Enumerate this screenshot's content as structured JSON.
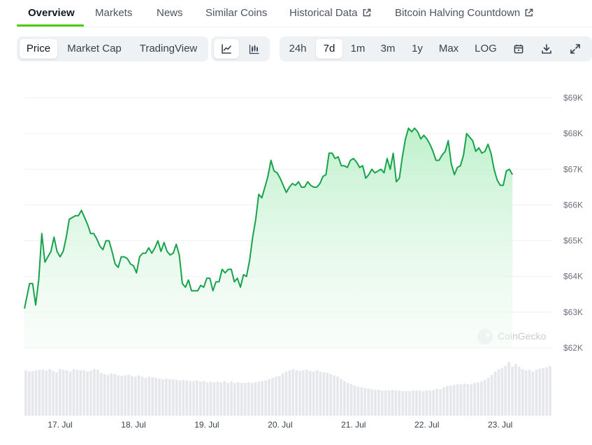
{
  "tabs": [
    {
      "label": "Overview",
      "active": true
    },
    {
      "label": "Markets"
    },
    {
      "label": "News"
    },
    {
      "label": "Similar Coins"
    },
    {
      "label": "Historical Data",
      "external": true
    },
    {
      "label": "Bitcoin Halving Countdown",
      "external": true
    }
  ],
  "toolbar": {
    "chart_kind": [
      "Price",
      "Market Cap",
      "TradingView"
    ],
    "chart_kind_selected": "Price",
    "chart_style_icons": [
      "line-chart-icon",
      "candlestick-icon"
    ],
    "chart_style_selected": "line-chart-icon",
    "ranges": [
      "24h",
      "7d",
      "1m",
      "3m",
      "1y",
      "Max",
      "LOG"
    ],
    "range_selected": "7d",
    "action_icons": [
      "calendar-icon",
      "download-icon",
      "expand-icon"
    ]
  },
  "watermark": "CoinGecko",
  "colors": {
    "line": "#16a34a",
    "fill_top": "#bbf0c9",
    "volume": "#e5e7eb",
    "accent": "#4bcc00"
  },
  "chart_data": {
    "type": "area",
    "x_ticks": [
      "17. Jul",
      "18. Jul",
      "19. Jul",
      "20. Jul",
      "21. Jul",
      "22. Jul",
      "23. Jul"
    ],
    "y_ticks": [
      "$69K",
      "$68K",
      "$67K",
      "$66K",
      "$65K",
      "$64K",
      "$63K",
      "$62K"
    ],
    "ylim": [
      62000,
      69000
    ],
    "x_range": [
      "16. Jul 12:20",
      "23. Jul 17:00"
    ],
    "series": [
      {
        "points": [
          [
            "16. Jul 12:20",
            63100
          ],
          [
            "16. Jul 14:00",
            63800
          ],
          [
            "16. Jul 15:00",
            63800
          ],
          [
            "16. Jul 16:00",
            63200
          ],
          [
            "16. Jul 17:00",
            63900
          ],
          [
            "16. Jul 18:00",
            65200
          ],
          [
            "16. Jul 19:00",
            64400
          ],
          [
            "16. Jul 20:00",
            64550
          ],
          [
            "16. Jul 21:00",
            64700
          ],
          [
            "16. Jul 22:00",
            65100
          ],
          [
            "16. Jul 23:00",
            64700
          ],
          [
            "17. Jul 00:00",
            64550
          ],
          [
            "17. Jul 01:00",
            64700
          ],
          [
            "17. Jul 02:00",
            65100
          ],
          [
            "17. Jul 03:00",
            65600
          ],
          [
            "17. Jul 05:00",
            65700
          ],
          [
            "17. Jul 06:00",
            65700
          ],
          [
            "17. Jul 07:00",
            65850
          ],
          [
            "17. Jul 08:00",
            65650
          ],
          [
            "17. Jul 09:00",
            65450
          ],
          [
            "17. Jul 10:00",
            65200
          ],
          [
            "17. Jul 11:00",
            65200
          ],
          [
            "17. Jul 12:00",
            65050
          ],
          [
            "17. Jul 13:00",
            64850
          ],
          [
            "17. Jul 14:00",
            64750
          ],
          [
            "17. Jul 15:00",
            65000
          ],
          [
            "17. Jul 16:00",
            65000
          ],
          [
            "17. Jul 17:00",
            64700
          ],
          [
            "17. Jul 18:00",
            64350
          ],
          [
            "17. Jul 19:00",
            64250
          ],
          [
            "17. Jul 20:00",
            64550
          ],
          [
            "17. Jul 21:00",
            64550
          ],
          [
            "17. Jul 22:00",
            64500
          ],
          [
            "17. Jul 23:00",
            64350
          ],
          [
            "18. Jul 00:00",
            64300
          ],
          [
            "18. Jul 01:00",
            64100
          ],
          [
            "18. Jul 02:00",
            64550
          ],
          [
            "18. Jul 03:00",
            64650
          ],
          [
            "18. Jul 04:00",
            64650
          ],
          [
            "18. Jul 05:00",
            64800
          ],
          [
            "18. Jul 06:00",
            64650
          ],
          [
            "18. Jul 07:00",
            64800
          ],
          [
            "18. Jul 08:00",
            65000
          ],
          [
            "18. Jul 09:00",
            64700
          ],
          [
            "18. Jul 10:00",
            64950
          ],
          [
            "18. Jul 11:00",
            64700
          ],
          [
            "18. Jul 12:00",
            64600
          ],
          [
            "18. Jul 13:00",
            64650
          ],
          [
            "18. Jul 14:00",
            64900
          ],
          [
            "18. Jul 15:00",
            64600
          ],
          [
            "18. Jul 16:00",
            63800
          ],
          [
            "18. Jul 17:00",
            63700
          ],
          [
            "18. Jul 18:00",
            63900
          ],
          [
            "18. Jul 19:00",
            63600
          ],
          [
            "18. Jul 20:00",
            63600
          ],
          [
            "18. Jul 21:00",
            63600
          ],
          [
            "18. Jul 22:00",
            63750
          ],
          [
            "18. Jul 23:00",
            63700
          ],
          [
            "19. Jul 00:00",
            63950
          ],
          [
            "19. Jul 01:00",
            63950
          ],
          [
            "19. Jul 02:00",
            63600
          ],
          [
            "19. Jul 03:00",
            63850
          ],
          [
            "19. Jul 04:00",
            63850
          ],
          [
            "19. Jul 05:00",
            64200
          ],
          [
            "19. Jul 06:00",
            64100
          ],
          [
            "19. Jul 07:00",
            64200
          ],
          [
            "19. Jul 08:00",
            64200
          ],
          [
            "19. Jul 09:00",
            63850
          ],
          [
            "19. Jul 10:00",
            63950
          ],
          [
            "19. Jul 11:00",
            63700
          ],
          [
            "19. Jul 12:00",
            64050
          ],
          [
            "19. Jul 13:00",
            64000
          ],
          [
            "19. Jul 14:00",
            64450
          ],
          [
            "19. Jul 15:00",
            65100
          ],
          [
            "19. Jul 16:00",
            65600
          ],
          [
            "19. Jul 17:00",
            66300
          ],
          [
            "19. Jul 18:00",
            66200
          ],
          [
            "19. Jul 19:00",
            66500
          ],
          [
            "19. Jul 20:00",
            66800
          ],
          [
            "19. Jul 21:00",
            67250
          ],
          [
            "19. Jul 22:00",
            66950
          ],
          [
            "19. Jul 23:00",
            66900
          ],
          [
            "20. Jul 00:00",
            66750
          ],
          [
            "20. Jul 01:00",
            66550
          ],
          [
            "20. Jul 02:00",
            66350
          ],
          [
            "20. Jul 03:00",
            66500
          ],
          [
            "20. Jul 04:00",
            66600
          ],
          [
            "20. Jul 05:00",
            66550
          ],
          [
            "20. Jul 06:00",
            66650
          ],
          [
            "20. Jul 07:00",
            66500
          ],
          [
            "20. Jul 08:00",
            66500
          ],
          [
            "20. Jul 09:00",
            66650
          ],
          [
            "20. Jul 10:00",
            66550
          ],
          [
            "20. Jul 11:00",
            66500
          ],
          [
            "20. Jul 12:00",
            66500
          ],
          [
            "20. Jul 13:00",
            66600
          ],
          [
            "20. Jul 14:00",
            66800
          ],
          [
            "20. Jul 15:00",
            66850
          ],
          [
            "20. Jul 16:00",
            67450
          ],
          [
            "20. Jul 17:00",
            67450
          ],
          [
            "20. Jul 18:00",
            67300
          ],
          [
            "20. Jul 19:00",
            67350
          ],
          [
            "20. Jul 20:00",
            67100
          ],
          [
            "20. Jul 21:00",
            67100
          ],
          [
            "20. Jul 22:00",
            67050
          ],
          [
            "20. Jul 23:00",
            67250
          ],
          [
            "21. Jul 00:00",
            67300
          ],
          [
            "21. Jul 01:00",
            67200
          ],
          [
            "21. Jul 02:00",
            67050
          ],
          [
            "21. Jul 03:00",
            67100
          ],
          [
            "21. Jul 04:00",
            66750
          ],
          [
            "21. Jul 05:00",
            66850
          ],
          [
            "21. Jul 06:00",
            67000
          ],
          [
            "21. Jul 07:00",
            66900
          ],
          [
            "21. Jul 08:00",
            66950
          ],
          [
            "21. Jul 09:00",
            67000
          ],
          [
            "21. Jul 10:00",
            66900
          ],
          [
            "21. Jul 11:00",
            67300
          ],
          [
            "21. Jul 12:00",
            67000
          ],
          [
            "21. Jul 13:00",
            67450
          ],
          [
            "21. Jul 14:00",
            66650
          ],
          [
            "21. Jul 15:00",
            66750
          ],
          [
            "21. Jul 16:00",
            67350
          ],
          [
            "21. Jul 17:00",
            67850
          ],
          [
            "21. Jul 18:00",
            68150
          ],
          [
            "21. Jul 19:00",
            68050
          ],
          [
            "21. Jul 20:00",
            68150
          ],
          [
            "21. Jul 21:00",
            68050
          ],
          [
            "21. Jul 22:00",
            67850
          ],
          [
            "21. Jul 23:00",
            67950
          ],
          [
            "22. Jul 00:00",
            67850
          ],
          [
            "22. Jul 01:00",
            67700
          ],
          [
            "22. Jul 02:00",
            67500
          ],
          [
            "22. Jul 03:00",
            67250
          ],
          [
            "22. Jul 04:00",
            67250
          ],
          [
            "22. Jul 05:00",
            67400
          ],
          [
            "22. Jul 06:00",
            67500
          ],
          [
            "22. Jul 07:00",
            67800
          ],
          [
            "22. Jul 08:00",
            67150
          ],
          [
            "22. Jul 09:00",
            66850
          ],
          [
            "22. Jul 10:00",
            67050
          ],
          [
            "22. Jul 11:00",
            67100
          ],
          [
            "22. Jul 12:00",
            67400
          ],
          [
            "22. Jul 13:00",
            68000
          ],
          [
            "22. Jul 14:00",
            67900
          ],
          [
            "22. Jul 15:00",
            67800
          ],
          [
            "22. Jul 16:00",
            67500
          ],
          [
            "22. Jul 17:00",
            67600
          ],
          [
            "22. Jul 18:00",
            67450
          ],
          [
            "22. Jul 19:00",
            67500
          ],
          [
            "22. Jul 20:00",
            67700
          ],
          [
            "22. Jul 21:00",
            67450
          ],
          [
            "22. Jul 22:00",
            67000
          ],
          [
            "22. Jul 23:00",
            66700
          ],
          [
            "23. Jul 00:00",
            66550
          ],
          [
            "23. Jul 01:00",
            66550
          ],
          [
            "23. Jul 02:00",
            66950
          ],
          [
            "23. Jul 03:00",
            67000
          ],
          [
            "23. Jul 04:00",
            66850
          ]
        ]
      }
    ],
    "volume_relative": [
      0.72,
      0.7,
      0.71,
      0.72,
      0.73,
      0.73,
      0.72,
      0.74,
      0.71,
      0.69,
      0.74,
      0.73,
      0.72,
      0.7,
      0.74,
      0.73,
      0.72,
      0.72,
      0.7,
      0.71,
      0.74,
      0.73,
      0.68,
      0.66,
      0.65,
      0.67,
      0.66,
      0.64,
      0.63,
      0.64,
      0.65,
      0.63,
      0.62,
      0.64,
      0.62,
      0.6,
      0.62,
      0.61,
      0.6,
      0.59,
      0.58,
      0.59,
      0.58,
      0.58,
      0.57,
      0.56,
      0.57,
      0.56,
      0.55,
      0.55,
      0.56,
      0.54,
      0.55,
      0.53,
      0.54,
      0.53,
      0.54,
      0.53,
      0.55,
      0.52,
      0.54,
      0.52,
      0.53,
      0.52,
      0.52,
      0.53,
      0.52,
      0.53,
      0.54,
      0.55,
      0.56,
      0.58,
      0.6,
      0.62,
      0.63,
      0.67,
      0.7,
      0.72,
      0.74,
      0.72,
      0.71,
      0.72,
      0.73,
      0.71,
      0.7,
      0.72,
      0.7,
      0.69,
      0.68,
      0.66,
      0.64,
      0.62,
      0.58,
      0.55,
      0.52,
      0.5,
      0.48,
      0.46,
      0.45,
      0.44,
      0.43,
      0.42,
      0.41,
      0.41,
      0.4,
      0.4,
      0.4,
      0.41,
      0.4,
      0.4,
      0.39,
      0.39,
      0.39,
      0.4,
      0.4,
      0.4,
      0.39,
      0.4,
      0.4,
      0.41,
      0.43,
      0.42,
      0.45,
      0.47,
      0.48,
      0.49,
      0.5,
      0.5,
      0.51,
      0.5,
      0.5,
      0.52,
      0.53,
      0.54,
      0.57,
      0.6,
      0.65,
      0.7,
      0.74,
      0.76,
      0.79,
      0.85,
      0.78,
      0.82,
      0.78,
      0.74,
      0.72,
      0.73,
      0.7,
      0.73,
      0.75,
      0.76,
      0.77,
      0.79
    ]
  }
}
